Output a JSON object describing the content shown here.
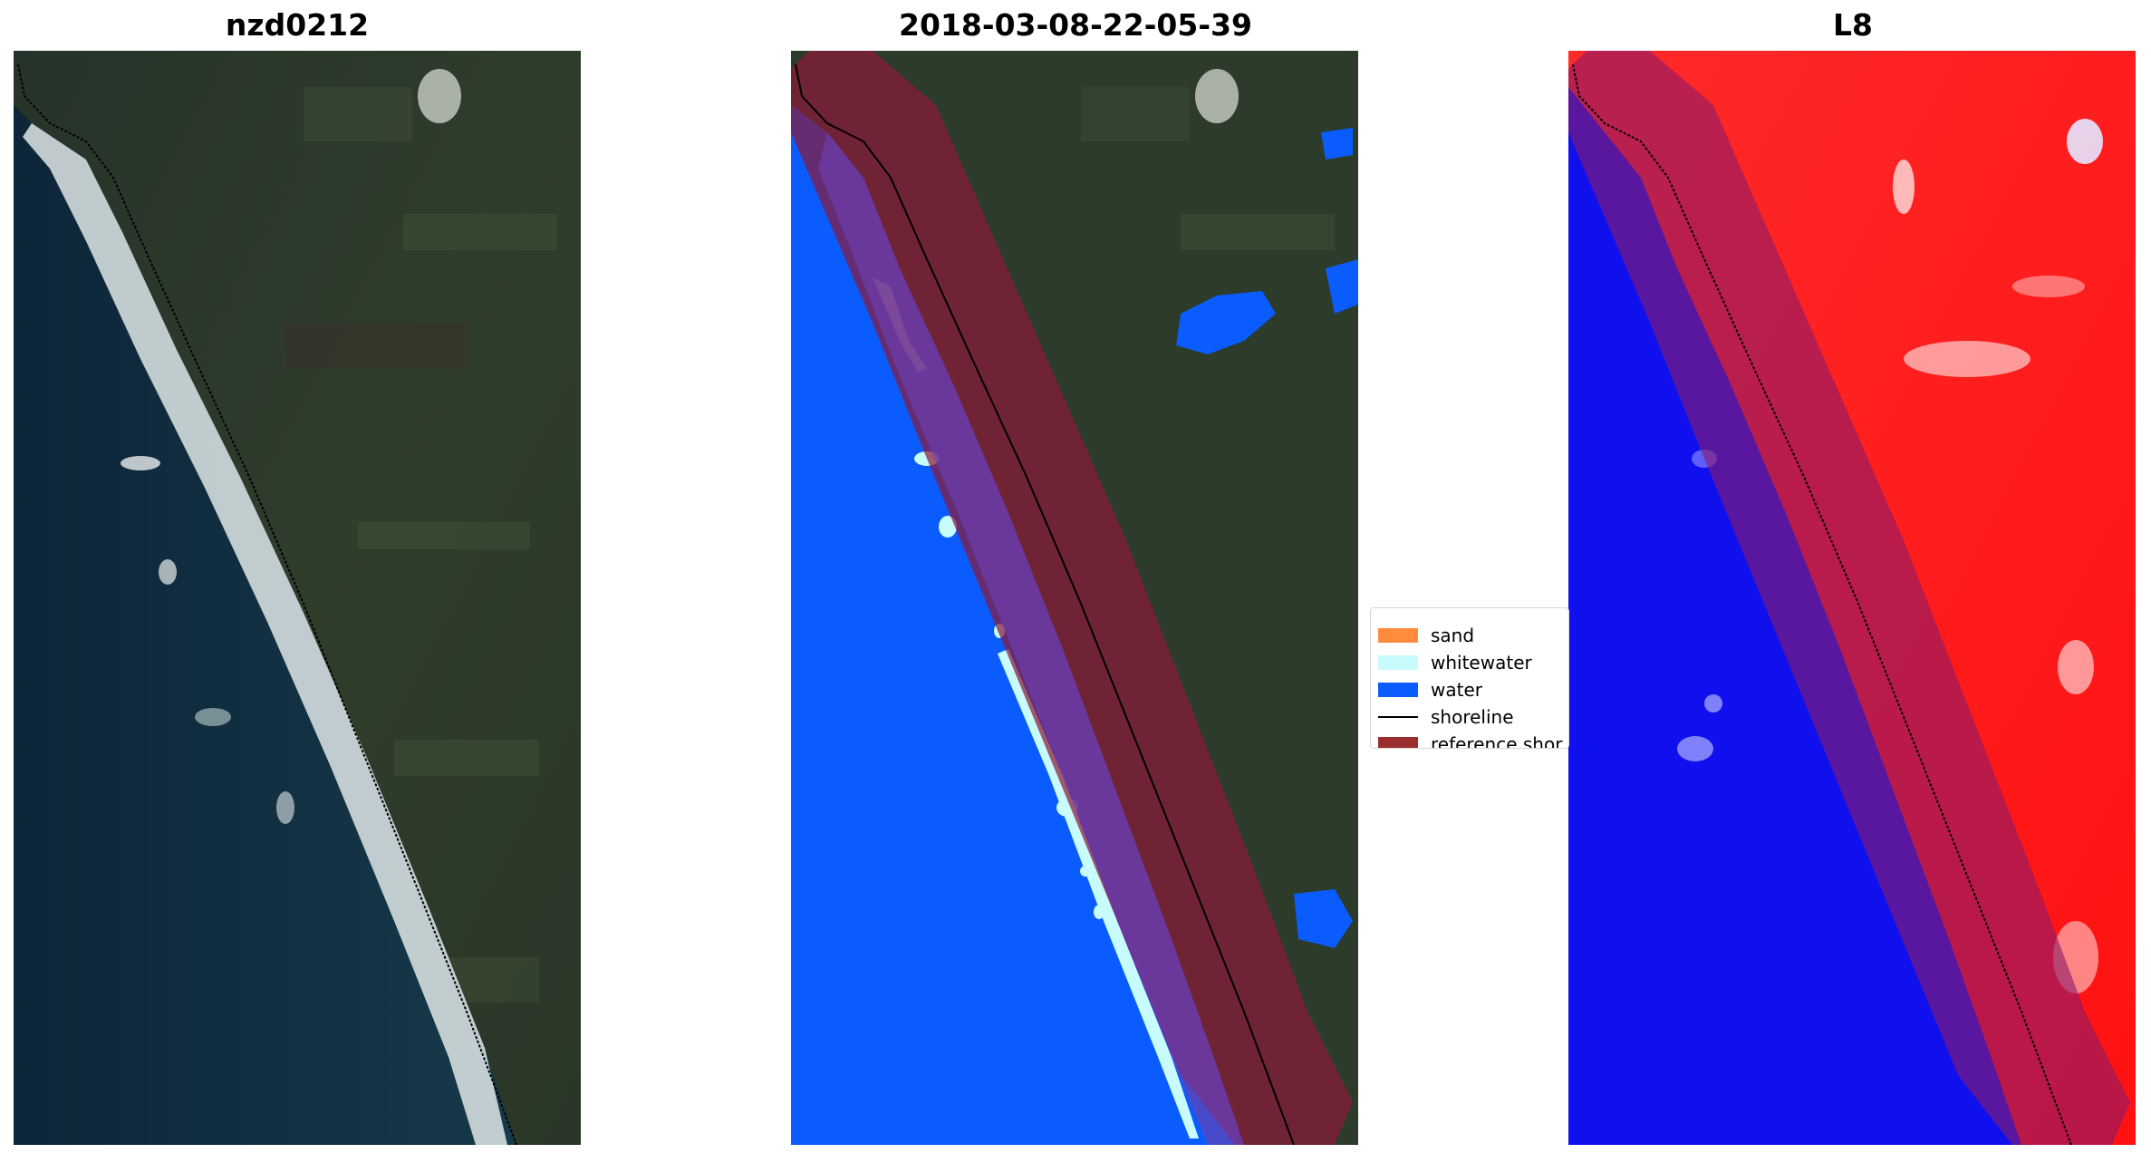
{
  "panels": [
    {
      "title": "nzd0212",
      "kind": "rgb-image"
    },
    {
      "title": "2018-03-08-22-05-39",
      "kind": "classified-image"
    },
    {
      "title": "L8",
      "kind": "index-image"
    }
  ],
  "legend": {
    "entries": [
      {
        "label": "sand",
        "type": "patch",
        "color": "#ff8c3c"
      },
      {
        "label": "whitewater",
        "type": "patch",
        "color": "#c8fcfc"
      },
      {
        "label": "water",
        "type": "patch",
        "color": "#0a5cff"
      },
      {
        "label": "shoreline",
        "type": "line",
        "color": "#000000"
      },
      {
        "label": "reference shor",
        "type": "patch",
        "color": "#9a2e2e"
      }
    ]
  },
  "colors": {
    "land": "#2c3b2a",
    "sea": "#0f2c44",
    "water_class": "#0a5cff",
    "whitewater_class": "#c8fcfc",
    "reference_buffer": "#8b1a3a",
    "index_positive": "#ff1a1a",
    "index_negative": "#1010ee"
  }
}
